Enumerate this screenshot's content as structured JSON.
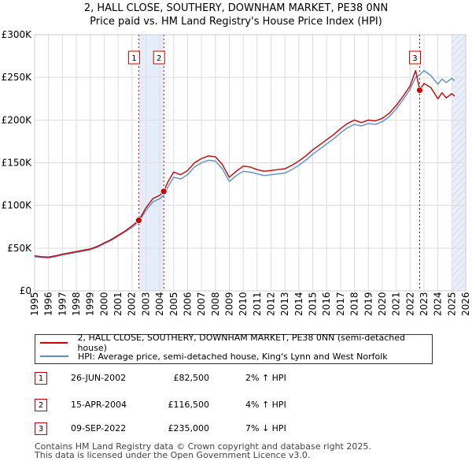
{
  "title_line1": "2, HALL CLOSE, SOUTHERY, DOWNHAM MARKET, PE38 0NN",
  "title_line2": "Price paid vs. HM Land Registry's House Price Index (HPI)",
  "chart_data": {
    "type": "line",
    "xlim": [
      1995,
      2026
    ],
    "ylim": [
      0,
      300000
    ],
    "x_ticks": [
      "1995",
      "1996",
      "1997",
      "1998",
      "1999",
      "2000",
      "2001",
      "2002",
      "2003",
      "2004",
      "2005",
      "2006",
      "2007",
      "2008",
      "2009",
      "2010",
      "2011",
      "2012",
      "2013",
      "2014",
      "2015",
      "2016",
      "2017",
      "2018",
      "2019",
      "2020",
      "2021",
      "2022",
      "2023",
      "2024",
      "2025",
      "2026"
    ],
    "y_ticks": [
      {
        "value": 0,
        "label": "£0"
      },
      {
        "value": 50000,
        "label": "£50K"
      },
      {
        "value": 100000,
        "label": "£100K"
      },
      {
        "value": 150000,
        "label": "£150K"
      },
      {
        "value": 200000,
        "label": "£200K"
      },
      {
        "value": 250000,
        "label": "£250K"
      },
      {
        "value": 300000,
        "label": "£300K"
      }
    ],
    "series": [
      {
        "name": "2, HALL CLOSE, SOUTHERY, DOWNHAM MARKET, PE38 0NN (semi-detached house)",
        "color": "#cc0000",
        "points": [
          [
            1995.0,
            41000
          ],
          [
            1995.5,
            40000
          ],
          [
            1996.0,
            39500
          ],
          [
            1996.5,
            41000
          ],
          [
            1997.0,
            43000
          ],
          [
            1997.5,
            44500
          ],
          [
            1998.0,
            46000
          ],
          [
            1998.5,
            47500
          ],
          [
            1999.0,
            49000
          ],
          [
            1999.5,
            52000
          ],
          [
            2000.0,
            56000
          ],
          [
            2000.5,
            60000
          ],
          [
            2001.0,
            65000
          ],
          [
            2001.5,
            70000
          ],
          [
            2002.0,
            76000
          ],
          [
            2002.49,
            82500
          ],
          [
            2003.0,
            97000
          ],
          [
            2003.5,
            108000
          ],
          [
            2004.0,
            112000
          ],
          [
            2004.29,
            116500
          ],
          [
            2004.6,
            128000
          ],
          [
            2005.0,
            139000
          ],
          [
            2005.5,
            136000
          ],
          [
            2006.0,
            141000
          ],
          [
            2006.5,
            150000
          ],
          [
            2007.0,
            155000
          ],
          [
            2007.5,
            158000
          ],
          [
            2008.0,
            157000
          ],
          [
            2008.5,
            148000
          ],
          [
            2009.0,
            133000
          ],
          [
            2009.5,
            140000
          ],
          [
            2010.0,
            146000
          ],
          [
            2010.5,
            145000
          ],
          [
            2011.0,
            142000
          ],
          [
            2011.5,
            140000
          ],
          [
            2012.0,
            141000
          ],
          [
            2012.5,
            142000
          ],
          [
            2013.0,
            143000
          ],
          [
            2013.5,
            147000
          ],
          [
            2014.0,
            152000
          ],
          [
            2014.5,
            158000
          ],
          [
            2015.0,
            165000
          ],
          [
            2015.5,
            171000
          ],
          [
            2016.0,
            177000
          ],
          [
            2016.5,
            183000
          ],
          [
            2017.0,
            190000
          ],
          [
            2017.5,
            196000
          ],
          [
            2018.0,
            200000
          ],
          [
            2018.5,
            197000
          ],
          [
            2019.0,
            200000
          ],
          [
            2019.5,
            199000
          ],
          [
            2020.0,
            202000
          ],
          [
            2020.5,
            208000
          ],
          [
            2021.0,
            217000
          ],
          [
            2021.5,
            228000
          ],
          [
            2022.0,
            240000
          ],
          [
            2022.4,
            258000
          ],
          [
            2022.69,
            235000
          ],
          [
            2023.0,
            243000
          ],
          [
            2023.5,
            238000
          ],
          [
            2024.0,
            225000
          ],
          [
            2024.3,
            232000
          ],
          [
            2024.6,
            226000
          ],
          [
            2025.0,
            231000
          ],
          [
            2025.2,
            228000
          ]
        ]
      },
      {
        "name": "HPI: Average price, semi-detached house, King's Lynn and West Norfolk",
        "color": "#5b8fd0",
        "points": [
          [
            1995.0,
            40000
          ],
          [
            1995.5,
            39000
          ],
          [
            1996.0,
            38500
          ],
          [
            1996.5,
            40000
          ],
          [
            1997.0,
            42000
          ],
          [
            1997.5,
            43500
          ],
          [
            1998.0,
            45000
          ],
          [
            1998.5,
            46500
          ],
          [
            1999.0,
            48000
          ],
          [
            1999.5,
            51000
          ],
          [
            2000.0,
            55000
          ],
          [
            2000.5,
            59000
          ],
          [
            2001.0,
            64000
          ],
          [
            2001.5,
            69000
          ],
          [
            2002.0,
            74000
          ],
          [
            2002.49,
            80800
          ],
          [
            2003.0,
            94000
          ],
          [
            2003.5,
            104000
          ],
          [
            2004.0,
            108000
          ],
          [
            2004.29,
            112000
          ],
          [
            2004.6,
            122000
          ],
          [
            2005.0,
            133000
          ],
          [
            2005.5,
            131000
          ],
          [
            2006.0,
            136000
          ],
          [
            2006.5,
            145000
          ],
          [
            2007.0,
            150000
          ],
          [
            2007.5,
            153000
          ],
          [
            2008.0,
            152000
          ],
          [
            2008.5,
            143000
          ],
          [
            2009.0,
            128000
          ],
          [
            2009.5,
            135000
          ],
          [
            2010.0,
            140000
          ],
          [
            2010.5,
            139000
          ],
          [
            2011.0,
            137000
          ],
          [
            2011.5,
            135000
          ],
          [
            2012.0,
            136000
          ],
          [
            2012.5,
            137000
          ],
          [
            2013.0,
            138000
          ],
          [
            2013.5,
            142000
          ],
          [
            2014.0,
            147000
          ],
          [
            2014.5,
            153000
          ],
          [
            2015.0,
            160000
          ],
          [
            2015.5,
            166000
          ],
          [
            2016.0,
            172000
          ],
          [
            2016.5,
            178000
          ],
          [
            2017.0,
            185000
          ],
          [
            2017.5,
            191000
          ],
          [
            2018.0,
            195000
          ],
          [
            2018.5,
            193000
          ],
          [
            2019.0,
            196000
          ],
          [
            2019.5,
            195000
          ],
          [
            2020.0,
            198000
          ],
          [
            2020.5,
            204000
          ],
          [
            2021.0,
            213000
          ],
          [
            2021.5,
            224000
          ],
          [
            2022.0,
            236000
          ],
          [
            2022.4,
            250000
          ],
          [
            2022.69,
            253000
          ],
          [
            2023.0,
            258000
          ],
          [
            2023.5,
            252000
          ],
          [
            2024.0,
            242000
          ],
          [
            2024.3,
            248000
          ],
          [
            2024.6,
            244000
          ],
          [
            2025.0,
            249000
          ],
          [
            2025.2,
            246000
          ]
        ]
      }
    ],
    "sales": [
      {
        "label": "1",
        "x": 2002.49,
        "y": 82500
      },
      {
        "label": "2",
        "x": 2004.29,
        "y": 116500
      },
      {
        "label": "3",
        "x": 2022.69,
        "y": 235000
      }
    ],
    "shaded_ranges": [
      [
        2002.49,
        2004.29
      ],
      [
        2025.0,
        2026.0
      ]
    ]
  },
  "legend": {
    "property_label": "2, HALL CLOSE, SOUTHERY, DOWNHAM MARKET, PE38 0NN (semi-detached house)",
    "hpi_label": "HPI: Average price, semi-detached house, King's Lynn and West Norfolk"
  },
  "transactions": [
    {
      "num": "1",
      "date": "26-JUN-2002",
      "price": "£82,500",
      "hpi": "2% ↑ HPI"
    },
    {
      "num": "2",
      "date": "15-APR-2004",
      "price": "£116,500",
      "hpi": "4% ↑ HPI"
    },
    {
      "num": "3",
      "date": "09-SEP-2022",
      "price": "£235,000",
      "hpi": "7% ↓ HPI"
    }
  ],
  "footer_line1": "Contains HM Land Registry data © Crown copyright and database right 2025.",
  "footer_line2": "This data is licensed under the Open Government Licence v3.0."
}
